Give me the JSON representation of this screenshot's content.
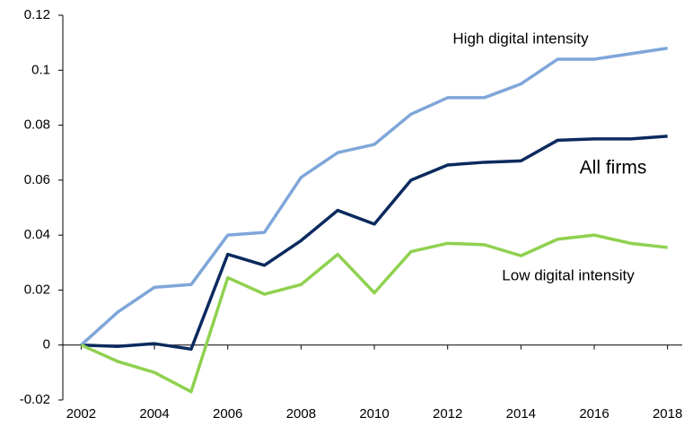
{
  "chart_data": {
    "type": "line",
    "x": [
      2002,
      2003,
      2004,
      2005,
      2006,
      2007,
      2008,
      2009,
      2010,
      2011,
      2012,
      2013,
      2014,
      2015,
      2016,
      2017,
      2018
    ],
    "series": [
      {
        "name": "High digital intensity",
        "color": "#7fa6d9",
        "values": [
          0,
          0.012,
          0.021,
          0.022,
          0.04,
          0.041,
          0.061,
          0.07,
          0.073,
          0.084,
          0.09,
          0.09,
          0.095,
          0.104,
          0.104,
          0.106,
          0.108
        ]
      },
      {
        "name": "All firms",
        "color": "#0b2a5e",
        "values": [
          0,
          -0.0005,
          0.0005,
          -0.0015,
          0.033,
          0.029,
          0.038,
          0.049,
          0.044,
          0.06,
          0.0655,
          0.0665,
          0.067,
          0.0745,
          0.075,
          0.075,
          0.076
        ]
      },
      {
        "name": "Low digital intensity",
        "color": "#8fd14f",
        "values": [
          0,
          -0.006,
          -0.01,
          -0.017,
          0.0245,
          0.0185,
          0.022,
          0.033,
          0.019,
          0.034,
          0.037,
          0.0365,
          0.0325,
          0.0385,
          0.04,
          0.037,
          0.0355
        ]
      }
    ],
    "xlim": [
      2001.5,
      2018.4
    ],
    "xticks": [
      2002,
      2004,
      2006,
      2008,
      2010,
      2012,
      2014,
      2016,
      2018
    ],
    "ylim": [
      -0.02,
      0.12
    ],
    "yticks": [
      -0.02,
      0,
      0.02,
      0.04,
      0.06,
      0.08,
      0.1,
      0.12
    ]
  }
}
